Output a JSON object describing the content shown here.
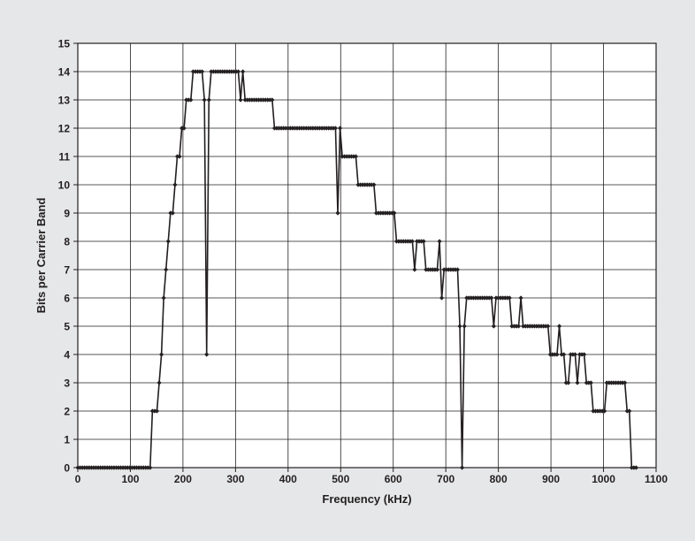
{
  "chart_data": {
    "type": "line",
    "title": "",
    "xlabel": "Frequency (kHz)",
    "ylabel": "Bits per Carrier Band",
    "xlim": [
      0,
      1100
    ],
    "ylim": [
      0,
      15
    ],
    "x_ticks": [
      0,
      100,
      200,
      300,
      400,
      500,
      600,
      700,
      800,
      900,
      1000,
      1100
    ],
    "y_ticks": [
      0,
      1,
      2,
      3,
      4,
      5,
      6,
      7,
      8,
      9,
      10,
      11,
      12,
      13,
      14,
      15
    ],
    "grid": true,
    "legend": "none",
    "colors": {
      "line": "#231f20",
      "background": "#e6e7e8",
      "plot_area": "#ffffff",
      "grid": "#231f20"
    },
    "series": [
      {
        "values": [
          [
            0,
            0
          ],
          [
            4.3,
            0
          ],
          [
            8.6,
            0
          ],
          [
            12.9,
            0
          ],
          [
            17.2,
            0
          ],
          [
            21.5,
            0
          ],
          [
            25.8,
            0
          ],
          [
            30.1,
            0
          ],
          [
            34.4,
            0
          ],
          [
            38.7,
            0
          ],
          [
            43,
            0
          ],
          [
            47.3,
            0
          ],
          [
            51.6,
            0
          ],
          [
            55.9,
            0
          ],
          [
            60.2,
            0
          ],
          [
            64.5,
            0
          ],
          [
            68.8,
            0
          ],
          [
            73.1,
            0
          ],
          [
            77.4,
            0
          ],
          [
            81.7,
            0
          ],
          [
            86,
            0
          ],
          [
            90.3,
            0
          ],
          [
            94.6,
            0
          ],
          [
            98.9,
            0
          ],
          [
            103.2,
            0
          ],
          [
            107.5,
            0
          ],
          [
            111.8,
            0
          ],
          [
            116.1,
            0
          ],
          [
            120.4,
            0
          ],
          [
            124.7,
            0
          ],
          [
            129,
            0
          ],
          [
            133.3,
            0
          ],
          [
            137.6,
            0
          ],
          [
            141.9,
            2
          ],
          [
            146.2,
            2
          ],
          [
            150.5,
            2
          ],
          [
            154.8,
            3
          ],
          [
            159.1,
            4
          ],
          [
            163.4,
            6
          ],
          [
            167.7,
            7
          ],
          [
            172,
            8
          ],
          [
            176.3,
            9
          ],
          [
            180.6,
            9
          ],
          [
            184.9,
            10
          ],
          [
            189.2,
            11
          ],
          [
            193.5,
            11
          ],
          [
            197.8,
            12
          ],
          [
            202.1,
            12
          ],
          [
            206.4,
            13
          ],
          [
            210.7,
            13
          ],
          [
            215,
            13
          ],
          [
            219.3,
            14
          ],
          [
            223.6,
            14
          ],
          [
            227.9,
            14
          ],
          [
            232.2,
            14
          ],
          [
            236.5,
            14
          ],
          [
            240.8,
            13
          ],
          [
            245.1,
            4
          ],
          [
            249.4,
            13
          ],
          [
            253.7,
            14
          ],
          [
            258,
            14
          ],
          [
            262.3,
            14
          ],
          [
            266.6,
            14
          ],
          [
            270.9,
            14
          ],
          [
            275.2,
            14
          ],
          [
            279.5,
            14
          ],
          [
            283.8,
            14
          ],
          [
            288.1,
            14
          ],
          [
            292.4,
            14
          ],
          [
            296.7,
            14
          ],
          [
            301,
            14
          ],
          [
            305.3,
            14
          ],
          [
            309.6,
            13
          ],
          [
            313.9,
            14
          ],
          [
            318.2,
            13
          ],
          [
            322.5,
            13
          ],
          [
            326.8,
            13
          ],
          [
            331.1,
            13
          ],
          [
            335.4,
            13
          ],
          [
            339.7,
            13
          ],
          [
            344,
            13
          ],
          [
            348.3,
            13
          ],
          [
            352.6,
            13
          ],
          [
            356.9,
            13
          ],
          [
            361.2,
            13
          ],
          [
            365.5,
            13
          ],
          [
            369.8,
            13
          ],
          [
            374.1,
            12
          ],
          [
            378.4,
            12
          ],
          [
            382.7,
            12
          ],
          [
            387,
            12
          ],
          [
            391.3,
            12
          ],
          [
            395.6,
            12
          ],
          [
            399.9,
            12
          ],
          [
            404.2,
            12
          ],
          [
            408.5,
            12
          ],
          [
            412.8,
            12
          ],
          [
            417.1,
            12
          ],
          [
            421.4,
            12
          ],
          [
            425.7,
            12
          ],
          [
            430,
            12
          ],
          [
            434.3,
            12
          ],
          [
            438.6,
            12
          ],
          [
            442.9,
            12
          ],
          [
            447.2,
            12
          ],
          [
            451.5,
            12
          ],
          [
            455.8,
            12
          ],
          [
            460.1,
            12
          ],
          [
            464.4,
            12
          ],
          [
            468.7,
            12
          ],
          [
            473,
            12
          ],
          [
            477.3,
            12
          ],
          [
            481.6,
            12
          ],
          [
            485.9,
            12
          ],
          [
            490.2,
            12
          ],
          [
            494.5,
            9
          ],
          [
            498.8,
            12
          ],
          [
            503.1,
            11
          ],
          [
            507.4,
            11
          ],
          [
            511.7,
            11
          ],
          [
            516,
            11
          ],
          [
            520.3,
            11
          ],
          [
            524.6,
            11
          ],
          [
            528.9,
            11
          ],
          [
            533.2,
            10
          ],
          [
            537.5,
            10
          ],
          [
            541.8,
            10
          ],
          [
            546.1,
            10
          ],
          [
            550.4,
            10
          ],
          [
            554.7,
            10
          ],
          [
            559,
            10
          ],
          [
            563.3,
            10
          ],
          [
            567.6,
            9
          ],
          [
            571.9,
            9
          ],
          [
            576.2,
            9
          ],
          [
            580.5,
            9
          ],
          [
            584.8,
            9
          ],
          [
            589.1,
            9
          ],
          [
            593.4,
            9
          ],
          [
            597.7,
            9
          ],
          [
            602,
            9
          ],
          [
            606.3,
            8
          ],
          [
            610.6,
            8
          ],
          [
            614.9,
            8
          ],
          [
            619.2,
            8
          ],
          [
            623.5,
            8
          ],
          [
            627.8,
            8
          ],
          [
            632.1,
            8
          ],
          [
            636.4,
            8
          ],
          [
            640.7,
            7
          ],
          [
            645,
            8
          ],
          [
            649.3,
            8
          ],
          [
            653.6,
            8
          ],
          [
            657.9,
            8
          ],
          [
            662.2,
            7
          ],
          [
            666.5,
            7
          ],
          [
            670.8,
            7
          ],
          [
            675.1,
            7
          ],
          [
            679.4,
            7
          ],
          [
            683.7,
            7
          ],
          [
            688,
            8
          ],
          [
            692.3,
            6
          ],
          [
            696.6,
            7
          ],
          [
            700.9,
            7
          ],
          [
            705.2,
            7
          ],
          [
            709.5,
            7
          ],
          [
            713.8,
            7
          ],
          [
            718.1,
            7
          ],
          [
            722.4,
            7
          ],
          [
            726.7,
            5
          ],
          [
            731,
            0
          ],
          [
            735.3,
            5
          ],
          [
            739.6,
            6
          ],
          [
            743.9,
            6
          ],
          [
            748.2,
            6
          ],
          [
            752.5,
            6
          ],
          [
            756.8,
            6
          ],
          [
            761.1,
            6
          ],
          [
            765.4,
            6
          ],
          [
            769.7,
            6
          ],
          [
            774,
            6
          ],
          [
            778.3,
            6
          ],
          [
            782.6,
            6
          ],
          [
            786.9,
            6
          ],
          [
            791.2,
            5
          ],
          [
            795.5,
            6
          ],
          [
            799.8,
            6
          ],
          [
            804.1,
            6
          ],
          [
            808.4,
            6
          ],
          [
            812.7,
            6
          ],
          [
            817,
            6
          ],
          [
            821.3,
            6
          ],
          [
            825.6,
            5
          ],
          [
            829.9,
            5
          ],
          [
            834.2,
            5
          ],
          [
            838.5,
            5
          ],
          [
            842.8,
            6
          ],
          [
            847.1,
            5
          ],
          [
            851.4,
            5
          ],
          [
            855.7,
            5
          ],
          [
            860,
            5
          ],
          [
            864.3,
            5
          ],
          [
            868.6,
            5
          ],
          [
            872.9,
            5
          ],
          [
            877.2,
            5
          ],
          [
            881.5,
            5
          ],
          [
            885.8,
            5
          ],
          [
            890.1,
            5
          ],
          [
            894.4,
            5
          ],
          [
            898.7,
            4
          ],
          [
            903,
            4
          ],
          [
            907.3,
            4
          ],
          [
            911.6,
            4
          ],
          [
            915.9,
            5
          ],
          [
            920.2,
            4
          ],
          [
            924.5,
            4
          ],
          [
            928.8,
            3
          ],
          [
            933.1,
            3
          ],
          [
            937.4,
            4
          ],
          [
            941.7,
            4
          ],
          [
            946,
            4
          ],
          [
            950.3,
            3
          ],
          [
            954.6,
            4
          ],
          [
            958.9,
            4
          ],
          [
            963.2,
            4
          ],
          [
            967.5,
            3
          ],
          [
            971.8,
            3
          ],
          [
            976.1,
            3
          ],
          [
            980.4,
            2
          ],
          [
            984.7,
            2
          ],
          [
            989,
            2
          ],
          [
            993.3,
            2
          ],
          [
            997.6,
            2
          ],
          [
            1001.9,
            2
          ],
          [
            1006.2,
            3
          ],
          [
            1010.5,
            3
          ],
          [
            1014.8,
            3
          ],
          [
            1019.1,
            3
          ],
          [
            1023.4,
            3
          ],
          [
            1027.7,
            3
          ],
          [
            1032,
            3
          ],
          [
            1036.3,
            3
          ],
          [
            1040.6,
            3
          ],
          [
            1044.9,
            2
          ],
          [
            1049.2,
            2
          ],
          [
            1053.5,
            0
          ],
          [
            1057.8,
            0
          ],
          [
            1062.1,
            0
          ]
        ]
      }
    ]
  }
}
